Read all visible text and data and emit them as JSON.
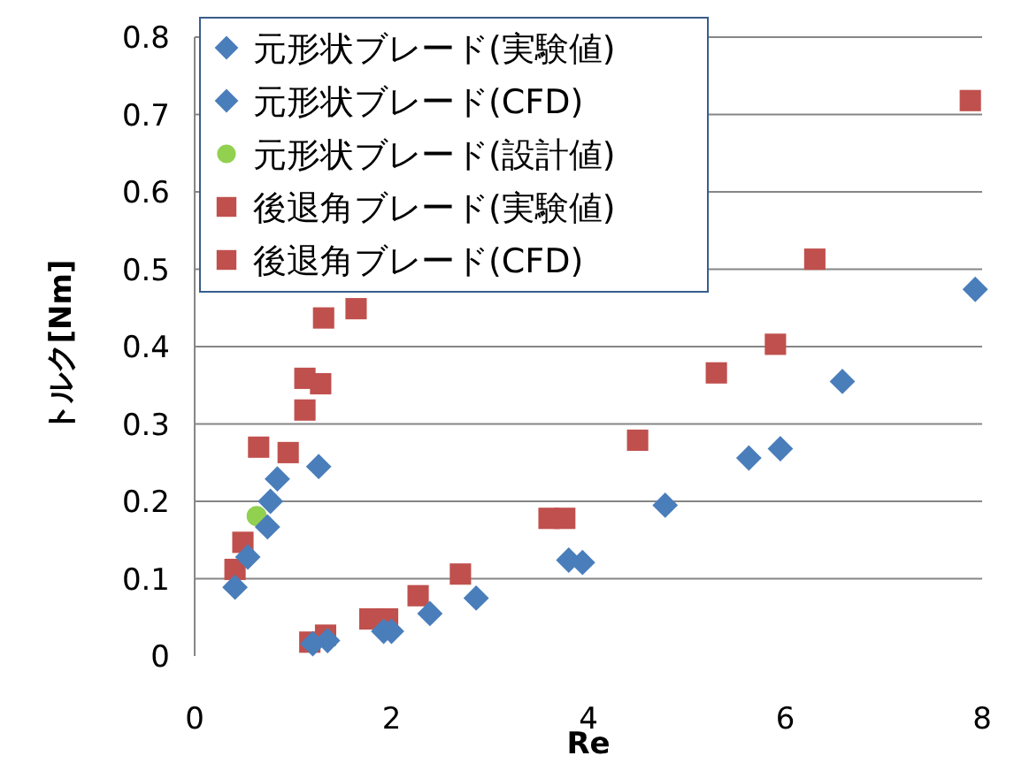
{
  "chart_data": {
    "type": "scatter",
    "xlabel": "Re",
    "ylabel": "トルク[Nm]",
    "xlim": [
      0,
      8
    ],
    "ylim": [
      0,
      0.8
    ],
    "xticks": [
      0,
      2,
      4,
      6,
      8
    ],
    "yticks": [
      0,
      0.1,
      0.2,
      0.3,
      0.4,
      0.5,
      0.6,
      0.7,
      0.8
    ],
    "grid": "y",
    "legend": "top left",
    "series": [
      {
        "name": "元形状ブレード(実験値)",
        "color": "#4a7ebb",
        "marker": "diamond",
        "x": [
          0.41,
          0.54,
          0.74,
          0.77,
          0.84,
          1.35,
          1.92,
          2.39,
          2.86,
          3.8,
          4.78,
          5.63,
          6.58
        ],
        "values": [
          0.089,
          0.128,
          0.167,
          0.2,
          0.229,
          0.02,
          0.032,
          0.055,
          0.075,
          0.124,
          0.195,
          0.256,
          0.355
        ]
      },
      {
        "name": "元形状ブレード(CFD)",
        "color": "#4a7ebb",
        "marker": "diamond",
        "x": [
          1.26,
          1.2,
          2.0,
          3.94,
          5.95,
          7.93
        ],
        "values": [
          0.245,
          0.016,
          0.032,
          0.121,
          0.268,
          0.474
        ]
      },
      {
        "name": "元形状ブレード(設計値)",
        "color": "#92d050",
        "marker": "circle",
        "x": [
          0.63
        ],
        "values": [
          0.181
        ]
      },
      {
        "name": "後退角ブレード(実験値)",
        "color": "#c0504d",
        "marker": "square",
        "x": [
          1.12,
          1.12,
          0.95,
          0.49,
          0.41,
          1.33,
          1.78,
          2.27,
          2.7,
          3.6,
          1.31,
          1.64,
          4.5,
          5.3,
          6.3
        ],
        "values": [
          0.359,
          0.318,
          0.263,
          0.147,
          0.112,
          0.027,
          0.048,
          0.078,
          0.106,
          0.178,
          0.437,
          0.449,
          0.279,
          0.366,
          0.513
        ]
      },
      {
        "name": "後退角ブレード(CFD)",
        "color": "#c0504d",
        "marker": "square",
        "x": [
          1.28,
          0.65,
          1.17,
          1.96,
          3.76,
          5.9,
          7.88
        ],
        "values": [
          0.352,
          0.27,
          0.018,
          0.048,
          0.178,
          0.403,
          0.718
        ]
      }
    ]
  }
}
